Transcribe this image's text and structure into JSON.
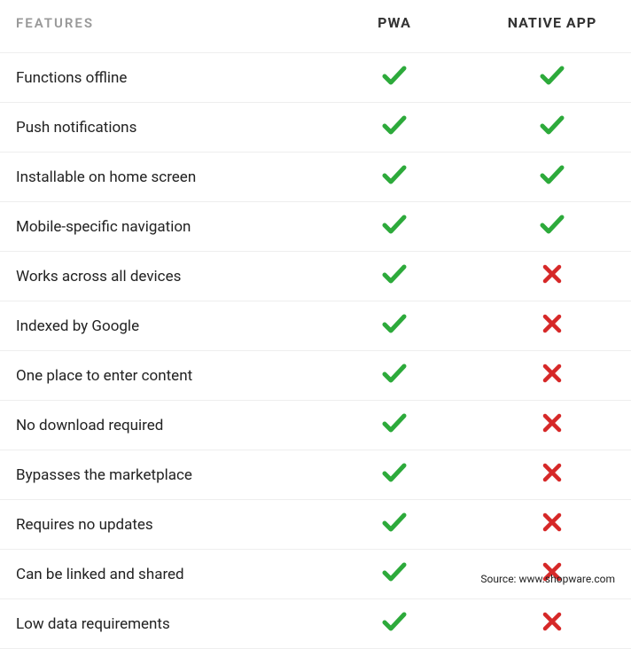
{
  "table": {
    "type": "table",
    "columns": [
      "FEATURES",
      "PWA",
      "NATIVE APP"
    ],
    "header_color_features": "#999999",
    "header_color": "#333333",
    "text_color": "#222222",
    "border_color": "#eeeeee",
    "background_color": "#ffffff",
    "check_color": "#2daa3b",
    "cross_color": "#d62828",
    "header_fontsize": 16,
    "row_fontsize": 17,
    "rows": [
      {
        "feature": "Functions offline",
        "pwa": true,
        "native": true
      },
      {
        "feature": "Push notifications",
        "pwa": true,
        "native": true
      },
      {
        "feature": "Installable on home screen",
        "pwa": true,
        "native": true
      },
      {
        "feature": "Mobile-specific navigation",
        "pwa": true,
        "native": true
      },
      {
        "feature": "Works across all devices",
        "pwa": true,
        "native": false
      },
      {
        "feature": "Indexed by Google",
        "pwa": true,
        "native": false
      },
      {
        "feature": "One place to enter content",
        "pwa": true,
        "native": false
      },
      {
        "feature": "No download required",
        "pwa": true,
        "native": false
      },
      {
        "feature": "Bypasses the marketplace",
        "pwa": true,
        "native": false
      },
      {
        "feature": "Requires no updates",
        "pwa": true,
        "native": false
      },
      {
        "feature": "Can be linked and shared",
        "pwa": true,
        "native": false
      },
      {
        "feature": "Low data requirements",
        "pwa": true,
        "native": false
      }
    ]
  },
  "source": "Source: www.shopware.com"
}
